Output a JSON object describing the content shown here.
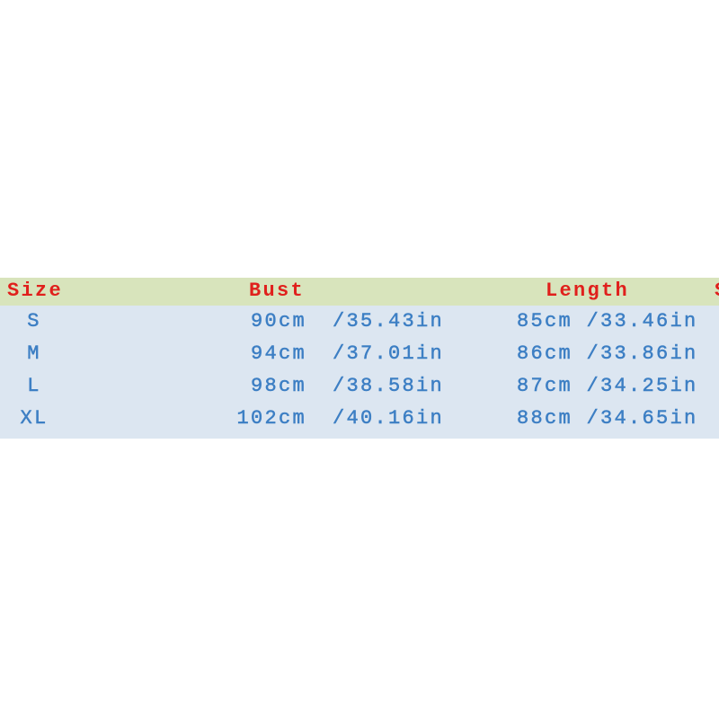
{
  "table": {
    "header": [
      "Size",
      "Bust",
      "Length",
      "S"
    ],
    "rows": [
      [
        "S",
        "90cm",
        "/35.43in",
        "85cm /33.46in"
      ],
      [
        "M",
        "94cm",
        "/37.01in",
        "86cm /33.86in"
      ],
      [
        "L",
        "98cm",
        "/38.58in",
        "87cm /34.25in"
      ],
      [
        "XL",
        "102cm",
        "/40.16in",
        "88cm /34.65in"
      ]
    ]
  }
}
